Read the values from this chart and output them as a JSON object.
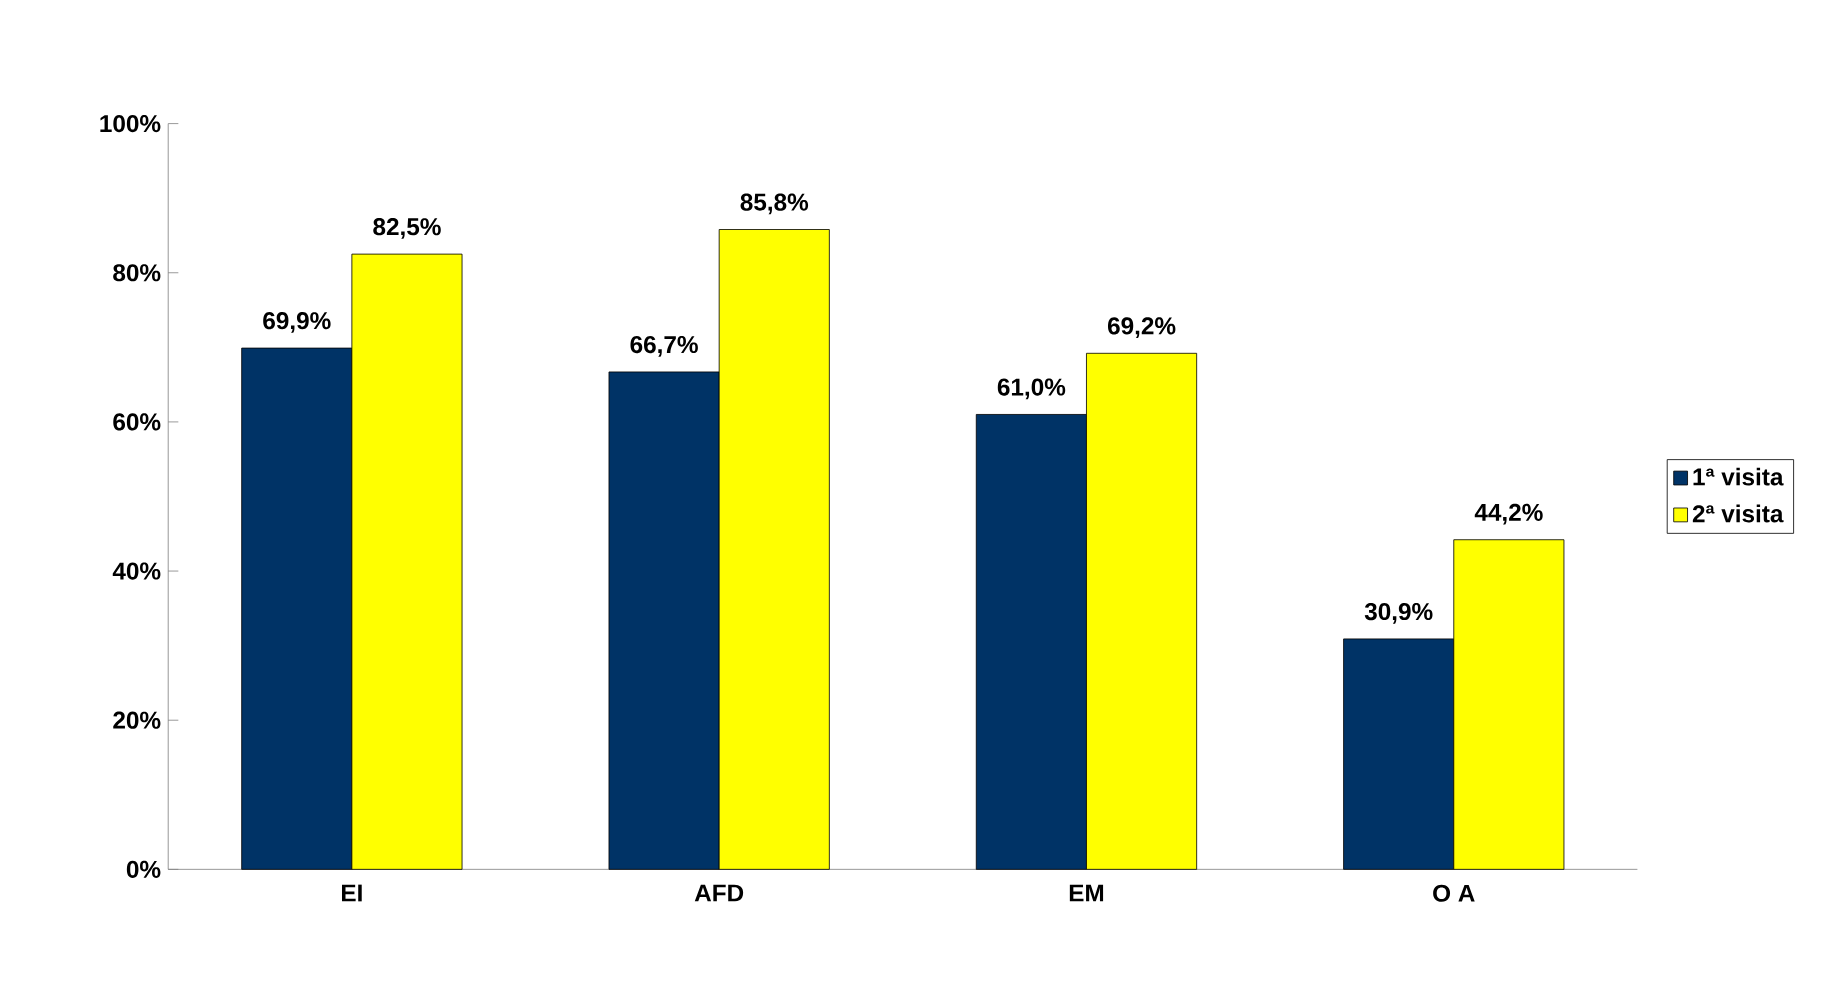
{
  "chart_data": {
    "type": "bar",
    "categories": [
      "EI",
      "AFD",
      "EM",
      "O A"
    ],
    "series": [
      {
        "name": "1ª visita",
        "color": "#003366",
        "values": [
          69.9,
          66.7,
          61.0,
          30.9
        ],
        "value_labels": [
          "69,9%",
          "66,7%",
          "61,0%",
          "30,9%"
        ]
      },
      {
        "name": "2ª visita",
        "color": "#ffff00",
        "values": [
          82.5,
          85.8,
          69.2,
          44.2
        ],
        "value_labels": [
          "82,5%",
          "85,8%",
          "69,2%",
          "44,2%"
        ]
      }
    ],
    "ylim": [
      0,
      100
    ],
    "yticks": [
      {
        "value": 0,
        "label": "0%"
      },
      {
        "value": 20,
        "label": "20%"
      },
      {
        "value": 40,
        "label": "40%"
      },
      {
        "value": 60,
        "label": "60%"
      },
      {
        "value": 80,
        "label": "80%"
      },
      {
        "value": 100,
        "label": "100%"
      }
    ],
    "legend": "right",
    "grid": false
  }
}
